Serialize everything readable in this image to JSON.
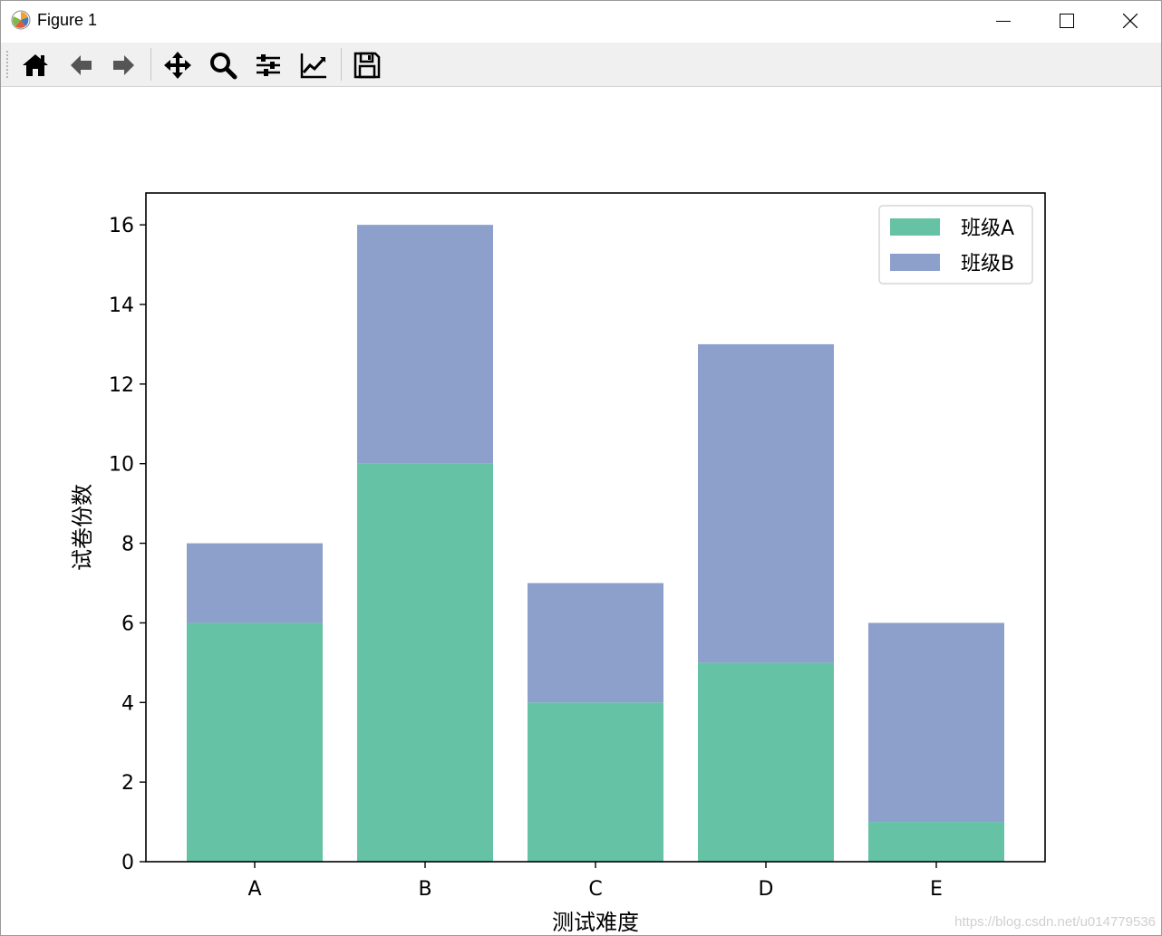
{
  "window": {
    "title": "Figure 1",
    "controls": [
      "minimize",
      "maximize",
      "close"
    ]
  },
  "toolbar": {
    "tools": [
      {
        "name": "home-icon",
        "label": "Home"
      },
      {
        "name": "back-icon",
        "label": "Back"
      },
      {
        "name": "forward-icon",
        "label": "Forward"
      },
      {
        "name": "pan-icon",
        "label": "Pan"
      },
      {
        "name": "zoom-icon",
        "label": "Zoom"
      },
      {
        "name": "subplots-icon",
        "label": "Subplots"
      },
      {
        "name": "axes-edit-icon",
        "label": "Customize"
      },
      {
        "name": "save-icon",
        "label": "Save"
      }
    ]
  },
  "chart_data": {
    "type": "bar",
    "stacked": true,
    "categories": [
      "A",
      "B",
      "C",
      "D",
      "E"
    ],
    "series": [
      {
        "name": "班级A",
        "values": [
          6,
          10,
          4,
          5,
          1
        ],
        "color": "#66c2a5"
      },
      {
        "name": "班级B",
        "values": [
          2,
          6,
          3,
          8,
          5
        ],
        "color": "#8da0cb"
      }
    ],
    "xlabel": "测试难度",
    "ylabel": "试卷份数",
    "ylim": [
      0,
      16.8
    ],
    "yticks": [
      0,
      2,
      4,
      6,
      8,
      10,
      12,
      14,
      16
    ],
    "grid": false,
    "legend": "top-right"
  },
  "watermark": "https://blog.csdn.net/u014779536"
}
